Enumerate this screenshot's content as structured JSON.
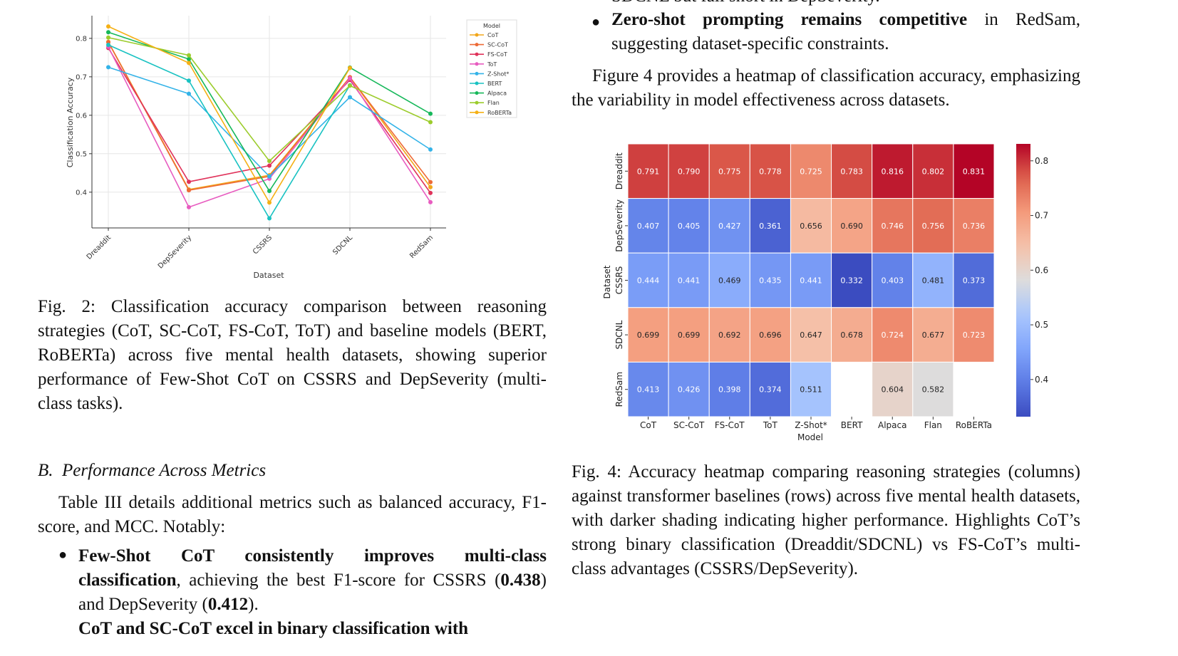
{
  "right_column": {
    "cut_top_line": "SDCNL but fall short in DepSeverity.",
    "bullet_zero_shot": {
      "bold": "Zero-shot prompting remains competitive",
      "rest": " in RedSam, suggesting dataset-specific constraints."
    },
    "para_fig4": "Figure 4 provides a heatmap of classification accuracy, emphasizing the variability in model effectiveness across datasets.",
    "fig4_caption": "Fig. 4: Accuracy heatmap comparing reasoning strategies (columns) against transformer baselines (rows) across five mental health datasets, with darker shading indicating higher performance. Highlights CoT’s strong binary classification (Dreaddit/SDCNL) vs FS-CoT’s multi-class advantages (CSSRS/DepSeverity)."
  },
  "left_column": {
    "fig2_caption": "Fig. 2: Classification accuracy comparison between reasoning strategies (CoT, SC-CoT, FS-CoT, ToT) and baseline models (BERT, RoBERTa) across five mental health datasets, showing superior performance of Few-Shot CoT on CSSRS and DepSeverity (multi-class tasks).",
    "section_heading": "B.  Performance Across Metrics",
    "para_table3": "Table III details additional metrics such as balanced accuracy, F1-score, and MCC. Notably:",
    "bullet_fewshot": {
      "bold1": "Few-Shot CoT consistently improves multi-class classification",
      "mid": ", achieving the best F1-score for CSSRS (",
      "bold2": "0.438",
      "mid2": ") and DepSeverity (",
      "bold3": "0.412",
      "end": ")."
    },
    "cut_bottom_line": "CoT and SC-CoT excel in binary classification with"
  },
  "chart_data": [
    {
      "type": "line",
      "xlabel": "Dataset",
      "ylabel": "Classification Accuracy",
      "categories": [
        "Dreaddit",
        "DepSeverity",
        "CSSRS",
        "SDCNL",
        "RedSam"
      ],
      "yticks": [
        "0.4",
        "0.5",
        "0.6",
        "0.7",
        "0.8"
      ],
      "ylim": [
        0.307,
        0.859
      ],
      "grid": true,
      "legend": {
        "title": "Model",
        "placement": "outside-right"
      },
      "series": [
        {
          "name": "CoT",
          "color": "#f2a71b",
          "values": [
            0.791,
            0.407,
            0.444,
            0.699,
            0.413
          ]
        },
        {
          "name": "SC-CoT",
          "color": "#ed6a36",
          "values": [
            0.79,
            0.405,
            0.441,
            0.699,
            0.426
          ]
        },
        {
          "name": "FS-CoT",
          "color": "#e0325a",
          "values": [
            0.775,
            0.427,
            0.469,
            0.692,
            0.398
          ]
        },
        {
          "name": "ToT",
          "color": "#e85cc0",
          "values": [
            0.778,
            0.361,
            0.435,
            0.696,
            0.374
          ]
        },
        {
          "name": "Z-Shot*",
          "color": "#33b3e8",
          "values": [
            0.725,
            0.656,
            0.441,
            0.647,
            0.511
          ]
        },
        {
          "name": "BERT",
          "color": "#19c2c2",
          "values": [
            0.783,
            0.69,
            0.332,
            0.678,
            null
          ]
        },
        {
          "name": "Alpaca",
          "color": "#16b85a",
          "values": [
            0.816,
            0.746,
            0.403,
            0.724,
            0.604
          ]
        },
        {
          "name": "Flan",
          "color": "#9ccc2c",
          "values": [
            0.802,
            0.756,
            0.481,
            0.677,
            0.582
          ]
        },
        {
          "name": "RoBERTa",
          "color": "#f5b015",
          "values": [
            0.831,
            0.736,
            0.373,
            0.723,
            null
          ]
        }
      ]
    },
    {
      "type": "heatmap",
      "xlabel": "Model",
      "ylabel": "Dataset",
      "columns": [
        "CoT",
        "SC-CoT",
        "FS-CoT",
        "ToT",
        "Z-Shot*",
        "BERT",
        "Alpaca",
        "Flan",
        "RoBERTa"
      ],
      "rows": [
        "Dreaddit",
        "DepSeverity",
        "CSSRS",
        "SDCNL",
        "RedSam"
      ],
      "values": [
        [
          0.791,
          0.79,
          0.775,
          0.778,
          0.725,
          0.783,
          0.816,
          0.802,
          0.831
        ],
        [
          0.407,
          0.405,
          0.427,
          0.361,
          0.656,
          0.69,
          0.746,
          0.756,
          0.736
        ],
        [
          0.444,
          0.441,
          0.469,
          0.435,
          0.441,
          0.332,
          0.403,
          0.481,
          0.373
        ],
        [
          0.699,
          0.699,
          0.692,
          0.696,
          0.647,
          0.678,
          0.724,
          0.677,
          0.723
        ],
        [
          0.413,
          0.426,
          0.398,
          0.374,
          0.511,
          null,
          0.604,
          0.582,
          null
        ]
      ],
      "colormap": "coolwarm",
      "vrange": [
        0.332,
        0.831
      ],
      "colorbar_ticks": [
        "0.4",
        "0.5",
        "0.6",
        "0.7",
        "0.8"
      ]
    }
  ]
}
